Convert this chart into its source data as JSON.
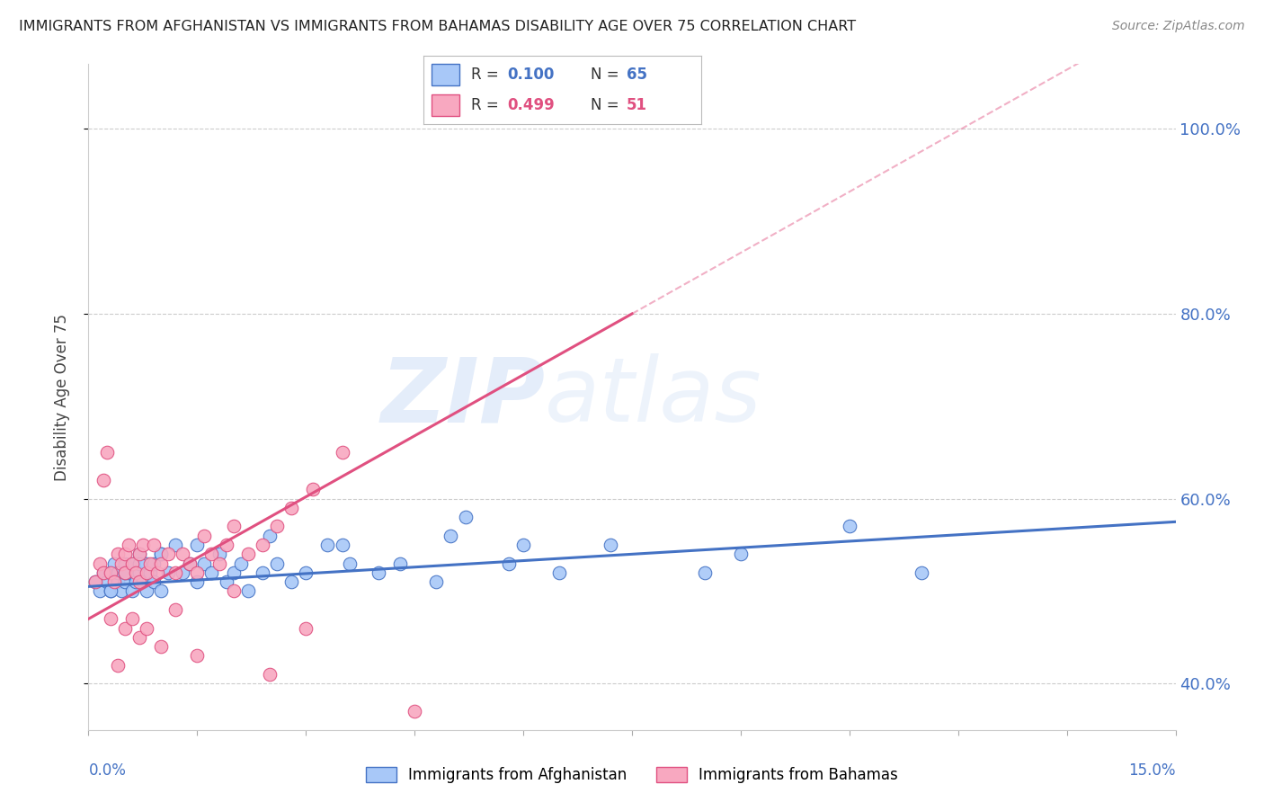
{
  "title": "IMMIGRANTS FROM AFGHANISTAN VS IMMIGRANTS FROM BAHAMAS DISABILITY AGE OVER 75 CORRELATION CHART",
  "source": "Source: ZipAtlas.com",
  "ylabel": "Disability Age Over 75",
  "xlim": [
    0.0,
    15.0
  ],
  "ylim": [
    35.0,
    107.0
  ],
  "ytick_vals": [
    40.0,
    60.0,
    80.0,
    100.0
  ],
  "legend_r1": "R = 0.100",
  "legend_n1": "N = 65",
  "legend_r2": "R = 0.499",
  "legend_n2": "N = 51",
  "legend_label1": "Immigrants from Afghanistan",
  "legend_label2": "Immigrants from Bahamas",
  "color_afghanistan": "#A8C8F8",
  "color_bahamas": "#F8A8C0",
  "color_line_afghanistan": "#4472C4",
  "color_line_bahamas": "#E05080",
  "color_text_blue": "#4472C4",
  "color_text_pink": "#E05080",
  "background_color": "#FFFFFF",
  "watermark_zip": "ZIP",
  "watermark_atlas": "atlas",
  "af_trend_x0": 0.0,
  "af_trend_y0": 50.5,
  "af_trend_x1": 15.0,
  "af_trend_y1": 57.5,
  "bah_trend_x0": 0.0,
  "bah_trend_y0": 47.0,
  "bah_trend_x1": 7.5,
  "bah_trend_y1": 80.0,
  "dash_x0": 0.0,
  "dash_y0": 52.0,
  "dash_x1": 15.0,
  "dash_y1": 100.0,
  "af_x": [
    0.1,
    0.15,
    0.2,
    0.25,
    0.3,
    0.3,
    0.35,
    0.4,
    0.4,
    0.45,
    0.5,
    0.5,
    0.5,
    0.55,
    0.6,
    0.6,
    0.65,
    0.7,
    0.7,
    0.75,
    0.8,
    0.8,
    0.85,
    0.9,
    0.9,
    1.0,
    1.0,
    1.1,
    1.2,
    1.3,
    1.4,
    1.5,
    1.6,
    1.7,
    1.8,
    1.9,
    2.0,
    2.1,
    2.2,
    2.4,
    2.6,
    2.8,
    3.0,
    3.3,
    3.6,
    4.0,
    4.3,
    4.8,
    5.2,
    5.8,
    6.5,
    7.2,
    8.5,
    9.0,
    10.5,
    11.5,
    0.3,
    0.5,
    0.7,
    1.0,
    1.5,
    2.5,
    3.5,
    5.0,
    6.0
  ],
  "af_y": [
    51,
    50,
    52,
    51,
    50,
    52,
    53,
    51,
    52,
    50,
    52,
    53,
    51,
    52,
    50,
    53,
    51,
    52,
    54,
    51,
    50,
    53,
    52,
    51,
    53,
    50,
    54,
    52,
    55,
    52,
    53,
    51,
    53,
    52,
    54,
    51,
    52,
    53,
    50,
    52,
    53,
    51,
    52,
    55,
    53,
    52,
    53,
    51,
    58,
    53,
    52,
    55,
    52,
    54,
    57,
    52,
    50,
    52,
    53,
    54,
    55,
    56,
    55,
    56,
    55
  ],
  "bah_x": [
    0.1,
    0.15,
    0.2,
    0.2,
    0.25,
    0.3,
    0.35,
    0.4,
    0.45,
    0.5,
    0.5,
    0.55,
    0.6,
    0.65,
    0.7,
    0.7,
    0.75,
    0.8,
    0.85,
    0.9,
    0.95,
    1.0,
    1.1,
    1.2,
    1.3,
    1.4,
    1.5,
    1.6,
    1.7,
    1.8,
    1.9,
    2.0,
    2.2,
    2.4,
    2.6,
    2.8,
    3.1,
    3.5,
    0.3,
    0.5,
    0.7,
    1.0,
    1.5,
    2.5,
    0.4,
    0.6,
    0.8,
    1.2,
    2.0,
    3.0,
    4.5
  ],
  "bah_y": [
    51,
    53,
    62,
    52,
    65,
    52,
    51,
    54,
    53,
    52,
    54,
    55,
    53,
    52,
    51,
    54,
    55,
    52,
    53,
    55,
    52,
    53,
    54,
    52,
    54,
    53,
    52,
    56,
    54,
    53,
    55,
    57,
    54,
    55,
    57,
    59,
    61,
    65,
    47,
    46,
    45,
    44,
    43,
    41,
    42,
    47,
    46,
    48,
    50,
    46,
    37
  ]
}
